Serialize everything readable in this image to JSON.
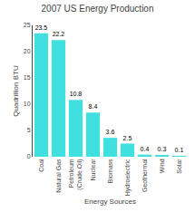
{
  "chart_data": {
    "type": "bar",
    "title": "2007 US Energy Production",
    "xlabel": "Energy Sources",
    "ylabel": "Quadrillion BTU",
    "categories": [
      "Coal",
      "Natural Gas",
      "Petroleum\n(Crude Oil)",
      "Nuclear",
      "Biomass",
      "Hydroelectric",
      "Geothermal",
      "Wind",
      "Solar"
    ],
    "values": [
      23.5,
      22.2,
      10.8,
      8.4,
      3.6,
      2.5,
      0.4,
      0.3,
      0.1
    ],
    "color": "#40E0E0",
    "ylim": [
      0,
      25
    ],
    "yticks": [
      0,
      5,
      10,
      15,
      20,
      25
    ],
    "grid": false,
    "data_labels": true
  }
}
